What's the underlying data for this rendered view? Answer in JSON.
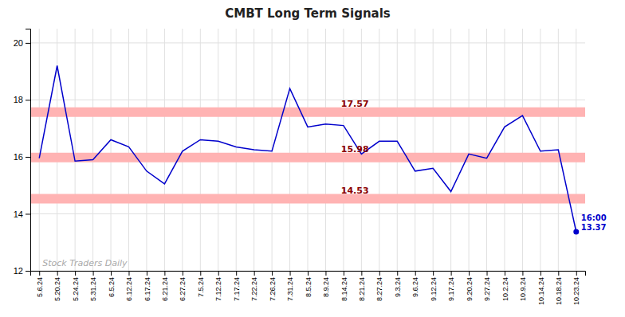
{
  "chart_data": {
    "type": "line",
    "title": "CMBT Long Term Signals",
    "categories": [
      "5.6.24",
      "5.20.24",
      "5.24.24",
      "5.31.24",
      "6.5.24",
      "6.12.24",
      "6.17.24",
      "6.21.24",
      "6.27.24",
      "7.5.24",
      "7.12.24",
      "7.17.24",
      "7.22.24",
      "7.26.24",
      "7.31.24",
      "8.5.24",
      "8.9.24",
      "8.14.24",
      "8.21.24",
      "8.27.24",
      "9.3.24",
      "9.6.24",
      "9.12.24",
      "9.17.24",
      "9.20.24",
      "9.27.24",
      "10.2.24",
      "10.9.24",
      "10.14.24",
      "10.18.24",
      "10.23.24"
    ],
    "values": [
      15.95,
      19.2,
      15.85,
      15.9,
      16.6,
      16.35,
      15.5,
      15.05,
      16.2,
      16.6,
      16.55,
      16.35,
      16.25,
      16.2,
      18.4,
      17.05,
      17.15,
      17.1,
      16.1,
      16.55,
      16.55,
      15.5,
      15.6,
      14.78,
      16.1,
      15.95,
      17.05,
      17.45,
      16.2,
      16.25,
      13.37
    ],
    "color": "#0000cc",
    "hlines": [
      17.57,
      15.98,
      14.53
    ],
    "annotations": [
      "16:00",
      "13.37",
      "Stock Traders Daily"
    ],
    "ylim": [
      12.0,
      20.5
    ],
    "yticks": [
      12,
      14,
      16,
      18,
      20
    ],
    "grid": true
  }
}
